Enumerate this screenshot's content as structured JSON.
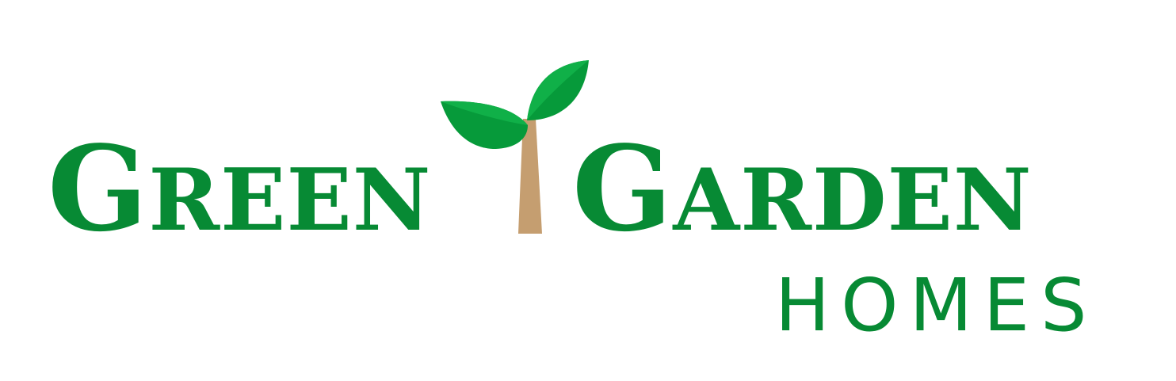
{
  "logo": {
    "word1_initial": "G",
    "word1_rest": "REEN",
    "word2_initial": "G",
    "word2_rest": "ARDEN",
    "tagline": "HOMES"
  },
  "colors": {
    "brand_green": "#078a34",
    "leaf_dark": "#069a3a",
    "leaf_light": "#10b048",
    "stem": "#c59e70",
    "background": "#ffffff"
  },
  "icons": {
    "sprout": "sprout-icon"
  }
}
